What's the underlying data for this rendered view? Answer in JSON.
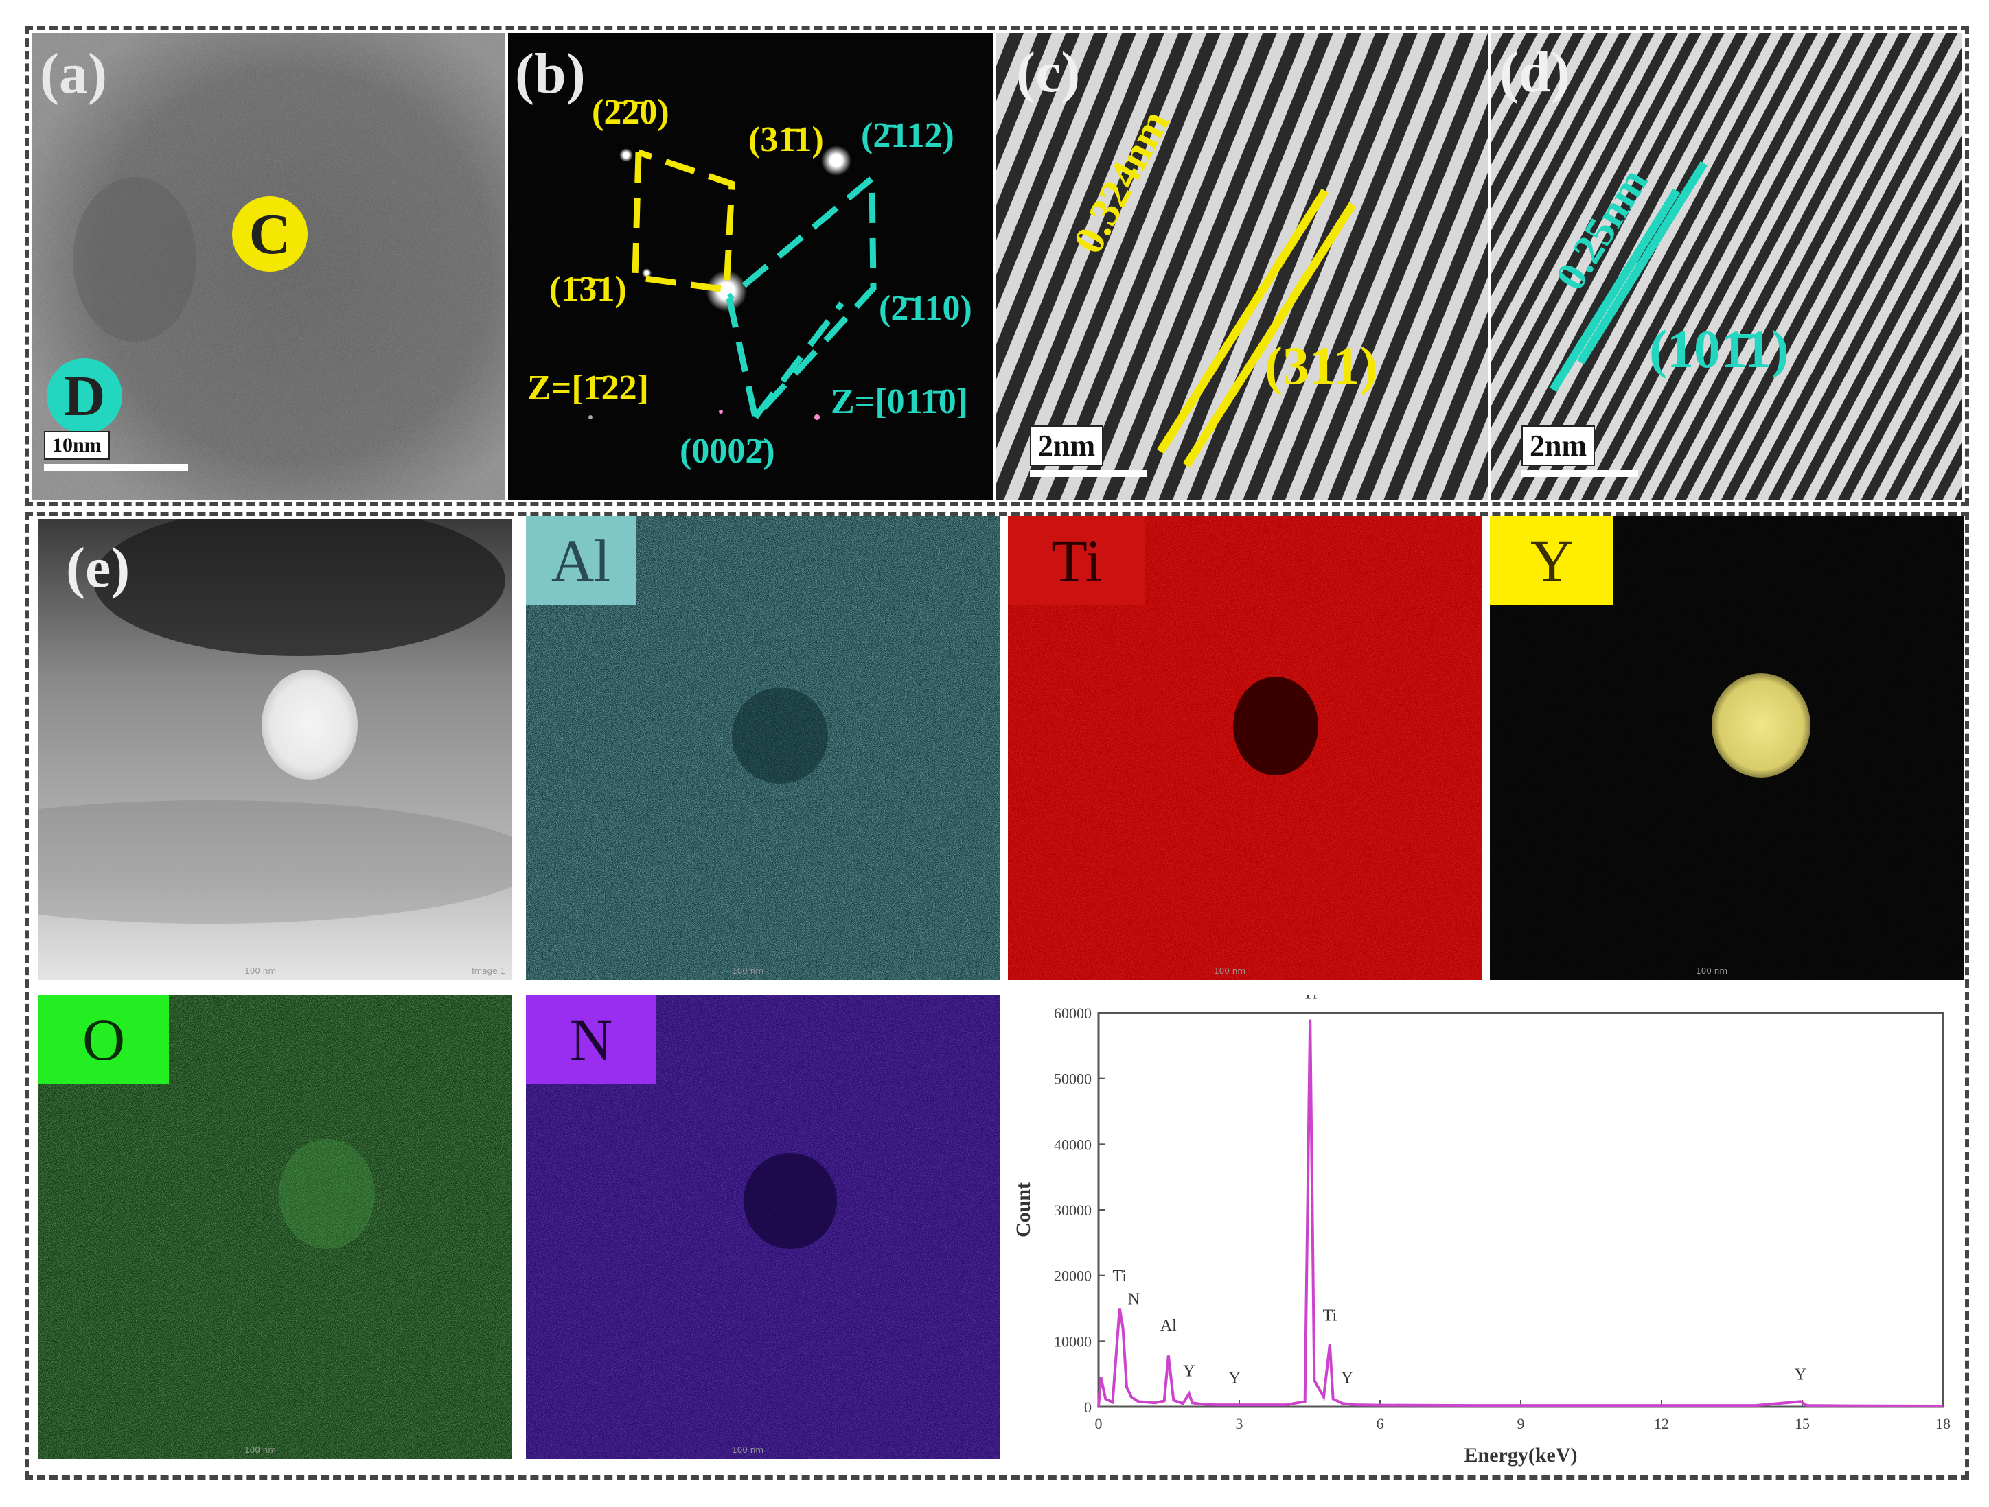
{
  "panels": {
    "a": {
      "label": "(a)",
      "marker_c": "C",
      "marker_d": "D",
      "scale": "10nm"
    },
    "b": {
      "label": "(b)",
      "spots_yellow": [
        "(2̄2̄0)",
        "(1̄3̄1)",
        "(31̄1)"
      ],
      "spots_cyan": [
        "(2̄112)",
        "(2̄110)",
        "(0002̄)"
      ],
      "zone_yellow": "Z=[1̄22]",
      "zone_cyan": "Z=[011̄0]"
    },
    "c": {
      "label": "(c)",
      "spacing": "0.324nm",
      "plane": "(311)",
      "scale": "2nm"
    },
    "d": {
      "label": "(d)",
      "spacing": "0.25nm",
      "plane": "(101̄1)",
      "scale": "2nm"
    },
    "e": {
      "label": "(e)",
      "scale": "100 nm",
      "detector": "Image 1"
    }
  },
  "maps": [
    {
      "element": "Al",
      "color": "#7fc6c6",
      "text_color": "#2a4a55",
      "bg": "#123a3f",
      "scale": "100 nm"
    },
    {
      "element": "Ti",
      "color": "#cc1111",
      "text_color": "#2a0000",
      "bg": "#c00000",
      "scale": "100 nm"
    },
    {
      "element": "Y",
      "color": "#ffee00",
      "text_color": "#3a3000",
      "bg": "#0a0a0a",
      "scale": "100 nm"
    },
    {
      "element": "O",
      "color": "#22ee22",
      "text_color": "#0a2a0a",
      "bg": "#143a14",
      "scale": "100 nm"
    },
    {
      "element": "N",
      "color": "#9a2ef0",
      "text_color": "#1a0630",
      "bg": "#2e0f78",
      "scale": "100 nm"
    }
  ],
  "chart_data": {
    "type": "line",
    "title": "",
    "xlabel": "Energy(keV)",
    "ylabel": "Count",
    "xlim": [
      0,
      18
    ],
    "ylim": [
      0,
      60000
    ],
    "xticks": [
      0,
      3,
      6,
      9,
      12,
      15,
      18
    ],
    "yticks": [
      0,
      10000,
      20000,
      30000,
      40000,
      50000,
      60000
    ],
    "series": [
      {
        "color": "#cc44cc",
        "x": [
          0,
          0.05,
          0.15,
          0.3,
          0.45,
          0.52,
          0.6,
          0.7,
          0.85,
          1.2,
          1.4,
          1.49,
          1.6,
          1.8,
          1.93,
          2.0,
          2.2,
          2.5,
          3.0,
          4.0,
          4.4,
          4.51,
          4.6,
          4.8,
          4.93,
          5.0,
          5.2,
          5.5,
          6.0,
          8.0,
          10.0,
          12.0,
          14.0,
          14.96,
          15.1,
          16.0,
          18.0
        ],
        "y": [
          0,
          4500,
          1200,
          700,
          15000,
          12000,
          3000,
          1500,
          800,
          600,
          900,
          7800,
          1000,
          500,
          2000,
          600,
          400,
          300,
          300,
          300,
          800,
          59000,
          4000,
          1500,
          9500,
          1200,
          500,
          300,
          250,
          200,
          200,
          200,
          200,
          800,
          200,
          150,
          100
        ]
      }
    ],
    "peak_labels": [
      {
        "text": "Ti",
        "x": 0.45,
        "y": 18500
      },
      {
        "text": "N",
        "x": 0.75,
        "y": 15000
      },
      {
        "text": "Al",
        "x": 1.49,
        "y": 11000
      },
      {
        "text": "Y",
        "x": 1.93,
        "y": 4000
      },
      {
        "text": "Y",
        "x": 2.9,
        "y": 3000
      },
      {
        "text": "Ti",
        "x": 4.51,
        "y": 61500
      },
      {
        "text": "Ti",
        "x": 4.93,
        "y": 12500
      },
      {
        "text": "Y",
        "x": 5.3,
        "y": 3000
      },
      {
        "text": "Y",
        "x": 14.96,
        "y": 3500
      }
    ]
  }
}
